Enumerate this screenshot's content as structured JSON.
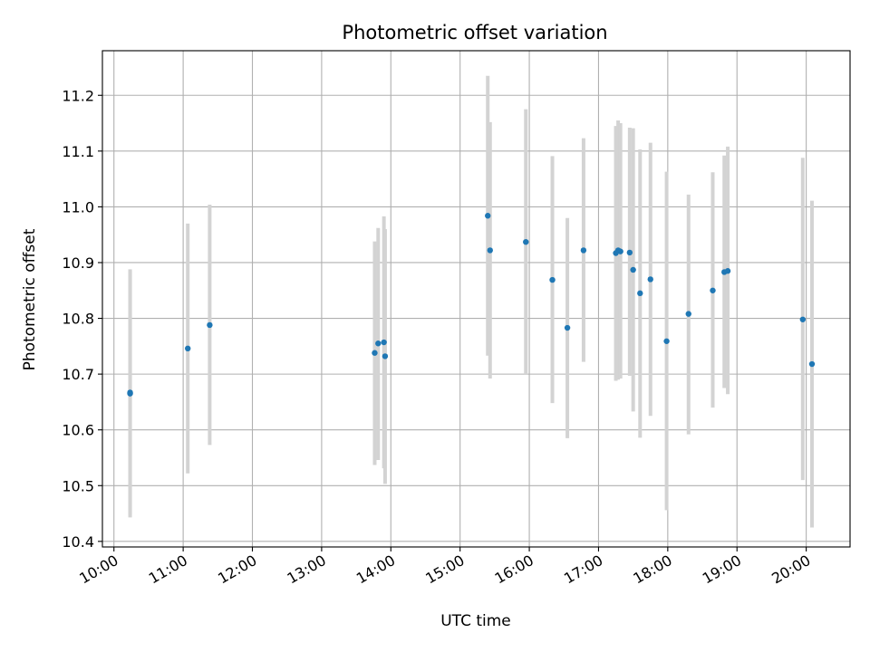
{
  "chart_data": {
    "type": "scatter",
    "title": "Photometric offset variation",
    "xlabel": "UTC time",
    "ylabel": "Photometric offset",
    "xlim": [
      "09:50",
      "20:38"
    ],
    "ylim": [
      10.39,
      11.28
    ],
    "grid": true,
    "legend": false,
    "x_ticks": [
      "10:00",
      "11:00",
      "12:00",
      "13:00",
      "14:00",
      "15:00",
      "16:00",
      "17:00",
      "18:00",
      "19:00",
      "20:00"
    ],
    "y_ticks": [
      10.4,
      10.5,
      10.6,
      10.7,
      10.8,
      10.9,
      11.0,
      11.1,
      11.2
    ],
    "y_tick_labels": [
      "10.4",
      "10.5",
      "10.6",
      "10.7",
      "10.8",
      "10.9",
      "11.0",
      "11.1",
      "11.2"
    ],
    "colors": {
      "points": "#1f77b4",
      "errorbars": "#d3d3d3"
    },
    "points": [
      {
        "x": "10:14",
        "y": 10.665,
        "ylo": 10.443,
        "yhi": 10.888
      },
      {
        "x": "10:14",
        "y": 10.667,
        "ylo": 10.448,
        "yhi": 10.886
      },
      {
        "x": "11:04",
        "y": 10.746,
        "ylo": 10.522,
        "yhi": 10.97
      },
      {
        "x": "11:23",
        "y": 10.788,
        "ylo": 10.573,
        "yhi": 11.004
      },
      {
        "x": "13:46",
        "y": 10.738,
        "ylo": 10.537,
        "yhi": 10.938
      },
      {
        "x": "13:49",
        "y": 10.755,
        "ylo": 10.546,
        "yhi": 10.962
      },
      {
        "x": "13:54",
        "y": 10.757,
        "ylo": 10.531,
        "yhi": 10.983
      },
      {
        "x": "13:55",
        "y": 10.732,
        "ylo": 10.503,
        "yhi": 10.96
      },
      {
        "x": "15:24",
        "y": 10.984,
        "ylo": 10.733,
        "yhi": 11.235
      },
      {
        "x": "15:26",
        "y": 10.922,
        "ylo": 10.692,
        "yhi": 11.152
      },
      {
        "x": "15:57",
        "y": 10.937,
        "ylo": 10.7,
        "yhi": 11.175
      },
      {
        "x": "16:20",
        "y": 10.869,
        "ylo": 10.648,
        "yhi": 11.091
      },
      {
        "x": "16:33",
        "y": 10.783,
        "ylo": 10.585,
        "yhi": 10.98
      },
      {
        "x": "16:47",
        "y": 10.922,
        "ylo": 10.722,
        "yhi": 11.123
      },
      {
        "x": "17:15",
        "y": 10.917,
        "ylo": 10.688,
        "yhi": 11.145
      },
      {
        "x": "17:17",
        "y": 10.922,
        "ylo": 10.69,
        "yhi": 11.155
      },
      {
        "x": "17:19",
        "y": 10.92,
        "ylo": 10.692,
        "yhi": 11.15
      },
      {
        "x": "17:27",
        "y": 10.918,
        "ylo": 10.697,
        "yhi": 11.142
      },
      {
        "x": "17:30",
        "y": 10.887,
        "ylo": 10.633,
        "yhi": 11.141
      },
      {
        "x": "17:36",
        "y": 10.845,
        "ylo": 10.586,
        "yhi": 11.103
      },
      {
        "x": "17:45",
        "y": 10.87,
        "ylo": 10.625,
        "yhi": 11.115
      },
      {
        "x": "17:59",
        "y": 10.759,
        "ylo": 10.456,
        "yhi": 11.063
      },
      {
        "x": "18:18",
        "y": 10.808,
        "ylo": 10.592,
        "yhi": 11.022
      },
      {
        "x": "18:39",
        "y": 10.85,
        "ylo": 10.64,
        "yhi": 11.062
      },
      {
        "x": "18:49",
        "y": 10.883,
        "ylo": 10.675,
        "yhi": 11.092
      },
      {
        "x": "18:52",
        "y": 10.885,
        "ylo": 10.664,
        "yhi": 11.108
      },
      {
        "x": "19:57",
        "y": 10.798,
        "ylo": 10.51,
        "yhi": 11.088
      },
      {
        "x": "20:05",
        "y": 10.718,
        "ylo": 10.425,
        "yhi": 11.011
      }
    ]
  }
}
